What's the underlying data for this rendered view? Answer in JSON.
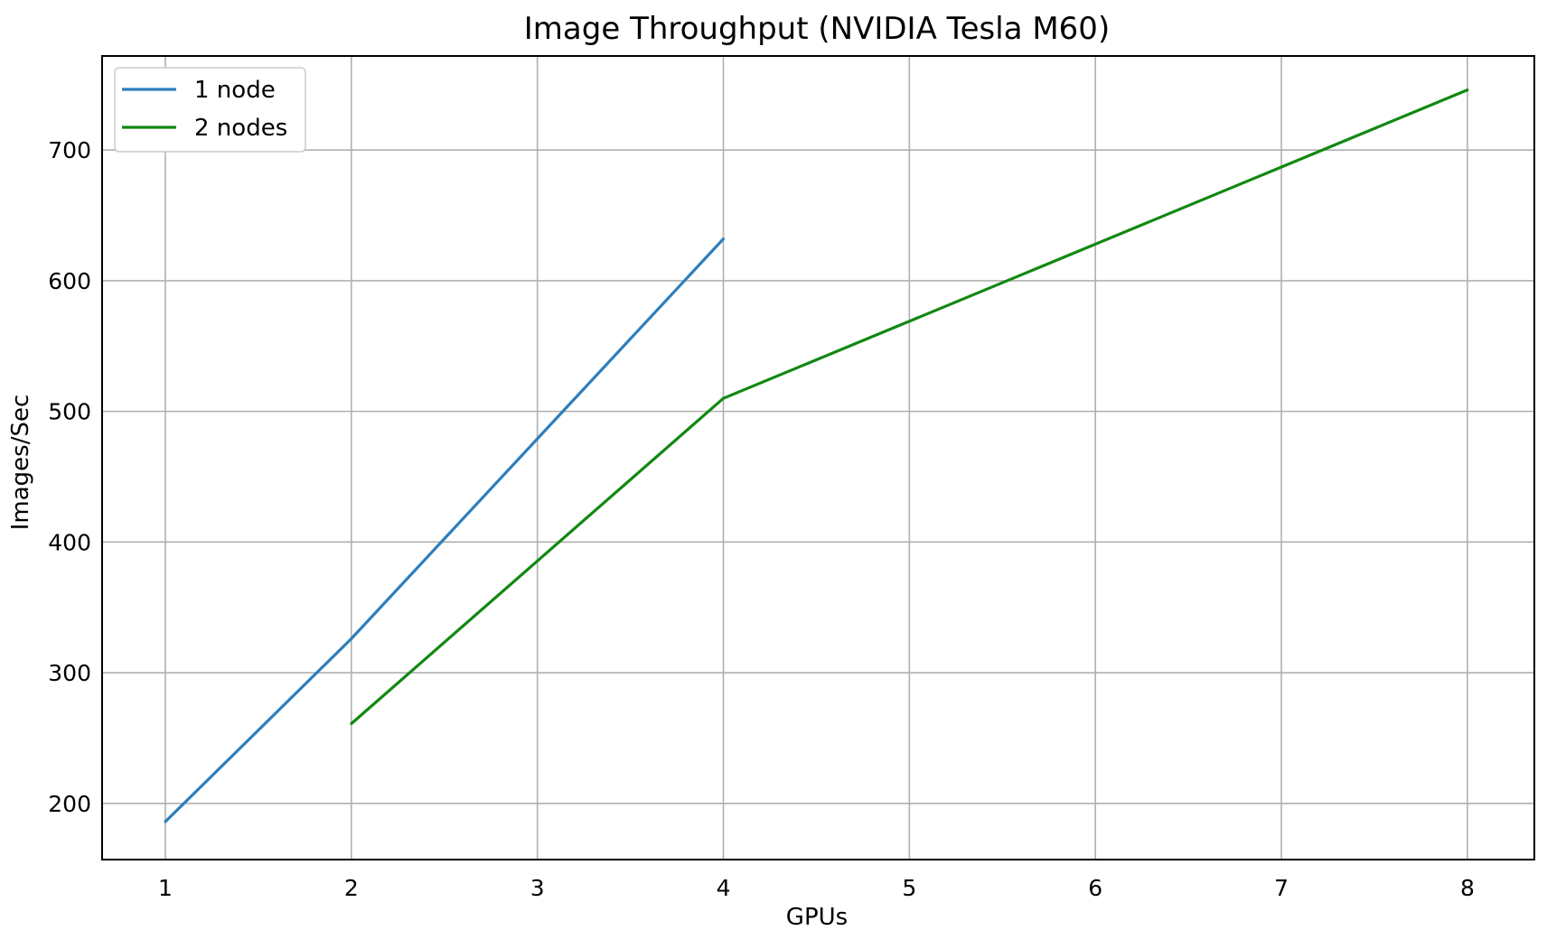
{
  "chart_data": {
    "type": "line",
    "title": "Image Throughput (NVIDIA Tesla M60)",
    "xlabel": "GPUs",
    "ylabel": "Images/Sec",
    "xlim": [
      0.66,
      8.36
    ],
    "ylim": [
      157,
      772
    ],
    "x_ticks": [
      1,
      2,
      3,
      4,
      5,
      6,
      7,
      8
    ],
    "y_ticks": [
      200,
      300,
      400,
      500,
      600,
      700
    ],
    "grid": true,
    "legend_position": "top-left",
    "series": [
      {
        "name": "1 node",
        "color": "#2e7ebc",
        "x": [
          1,
          2,
          4
        ],
        "y": [
          186,
          326,
          632
        ]
      },
      {
        "name": "2 nodes",
        "color": "#118811",
        "x": [
          2,
          4,
          8
        ],
        "y": [
          261,
          510,
          746
        ]
      }
    ]
  }
}
